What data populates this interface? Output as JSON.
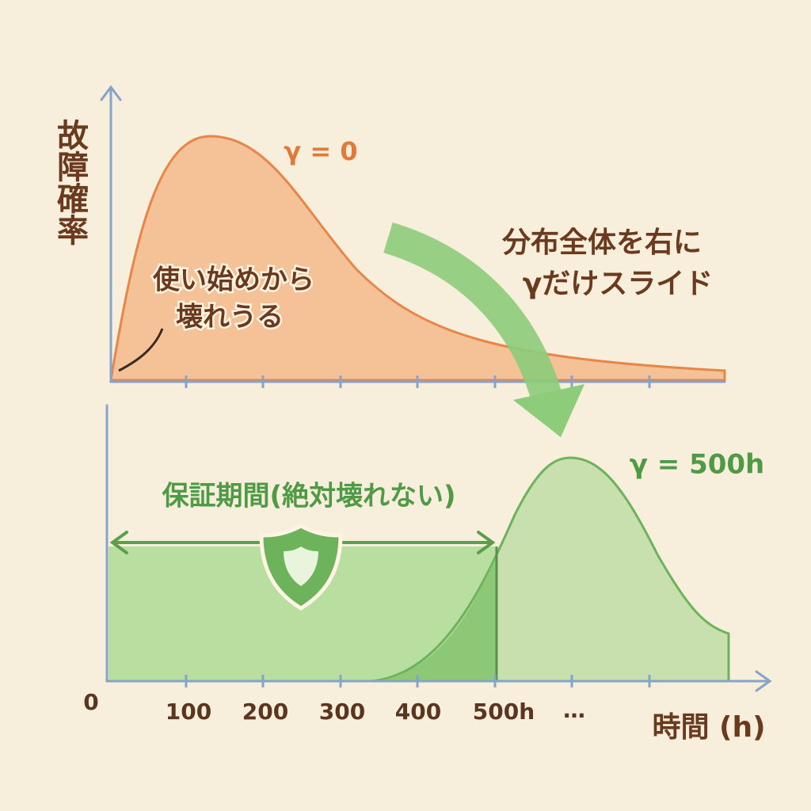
{
  "y_axis_label": "故障確率",
  "top_panel": {
    "curve_label": "γ = 0",
    "annotation": [
      "使い始めから",
      "壊れうる"
    ]
  },
  "arrow_label": [
    "分布全体を右に",
    "γだけスライド"
  ],
  "bottom_panel": {
    "curve_label": "γ = 500h",
    "warranty_label": "保証期間(絶対壊れない)"
  },
  "x_axis": {
    "origin": "0",
    "ticks": [
      "100",
      "200",
      "300",
      "400",
      "500h",
      "…"
    ],
    "label": "時間 (h)"
  }
}
